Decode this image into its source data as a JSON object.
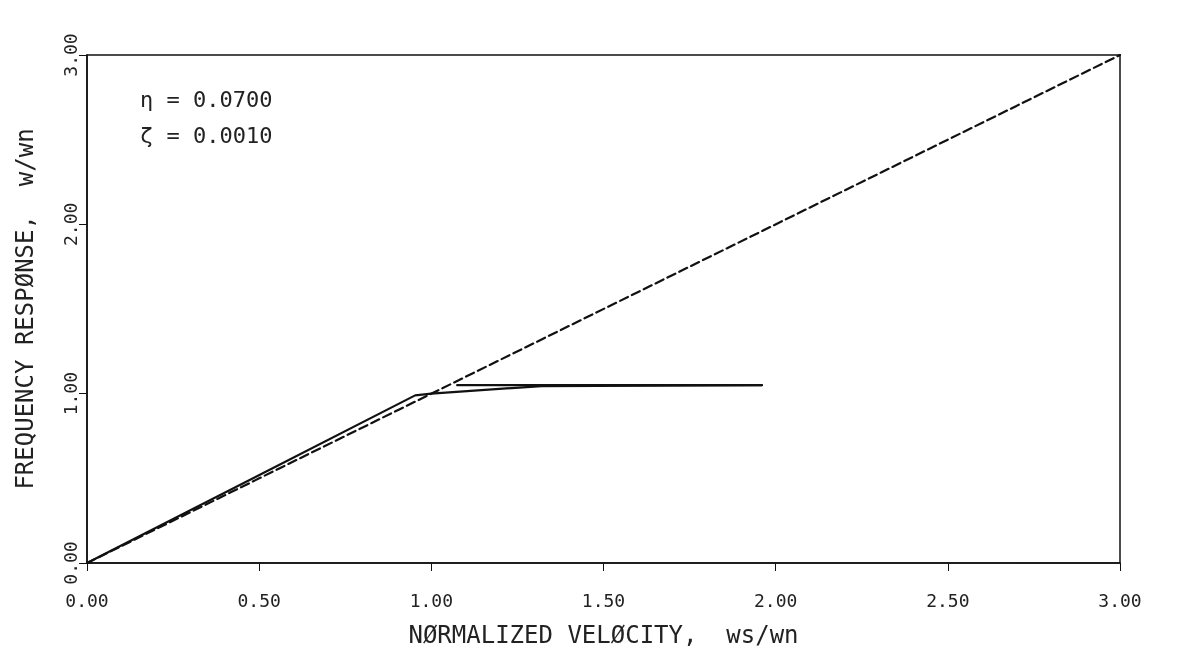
{
  "chart_data": {
    "type": "line",
    "xlabel": "NØRMALIZED VELØCITY,  ws/wn",
    "ylabel": "FREQUENCY RESPØNSE,  w/wn",
    "annotations": [
      "η = 0.0700",
      "ζ = 0.0010"
    ],
    "series": [
      {
        "color": "#111111",
        "line_style": "solid",
        "x": [
          0,
          0.953,
          1.0,
          1.32,
          1.96
        ],
        "values": [
          0,
          0.99,
          1.0,
          1.045,
          1.05
        ]
      },
      {
        "color": "#111111",
        "line_style": "solid",
        "x": [
          1.075,
          1.96
        ],
        "values": [
          1.05,
          1.05
        ]
      },
      {
        "color": "#111111",
        "line_style": "dashed",
        "x": [
          0,
          3
        ],
        "values": [
          0,
          3
        ]
      }
    ],
    "xlim": [
      0,
      3
    ],
    "xticks": [
      {
        "value": 0,
        "label": "0.00"
      },
      {
        "value": 0.5,
        "label": "0.50"
      },
      {
        "value": 1,
        "label": "1.00"
      },
      {
        "value": 1.5,
        "label": "1.50"
      },
      {
        "value": 2,
        "label": "2.00"
      },
      {
        "value": 2.5,
        "label": "2.50"
      },
      {
        "value": 3,
        "label": "3.00"
      }
    ],
    "ylim": [
      0,
      3
    ],
    "yticks": [
      {
        "value": 0,
        "label": "0.00"
      },
      {
        "value": 1,
        "label": "1.00"
      },
      {
        "value": 2,
        "label": "2.00"
      },
      {
        "value": 3,
        "label": "3.00"
      }
    ],
    "grid": false,
    "marker": "none"
  }
}
